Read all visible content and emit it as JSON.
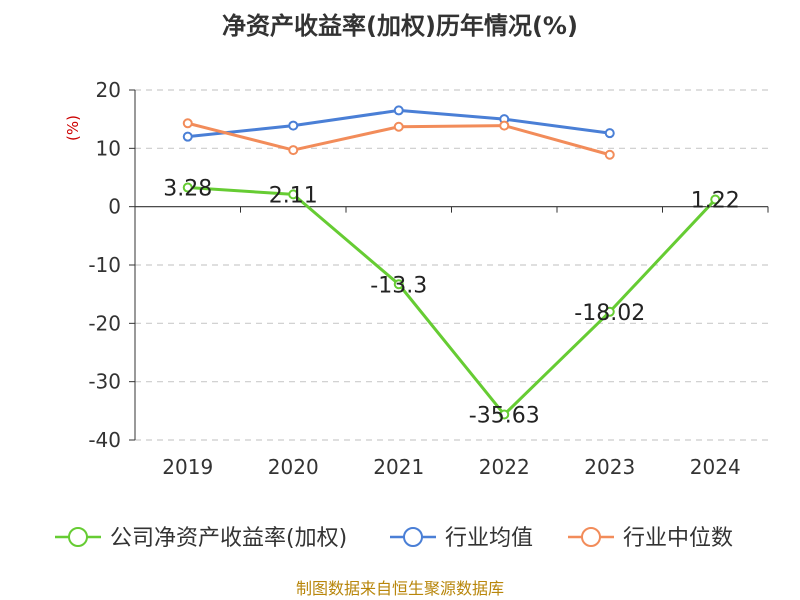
{
  "chart_data": {
    "type": "line",
    "title": "净资产收益率(加权)历年情况(%)",
    "ylabel": "(%)",
    "xlabel": "",
    "categories": [
      "2019",
      "2020",
      "2021",
      "2022",
      "2023",
      "2024"
    ],
    "ylim": [
      -40,
      20
    ],
    "yticks": [
      20,
      10,
      0,
      -10,
      -20,
      -30,
      -40
    ],
    "grid": "horizontal-dashed",
    "legend_position": "bottom",
    "series": [
      {
        "name": "公司净资产收益率(加权)",
        "color": "#66cc33",
        "values": [
          3.28,
          2.11,
          -13.3,
          -35.63,
          -18.02,
          1.22
        ],
        "labels": [
          "3.28",
          "2.11",
          "-13.3",
          "-35.63",
          "-18.02",
          "1.22"
        ]
      },
      {
        "name": "行业均值",
        "color": "#4a7fd6",
        "values": [
          12.0,
          13.9,
          16.5,
          15.0,
          12.6,
          null
        ]
      },
      {
        "name": "行业中位数",
        "color": "#f28c5a",
        "values": [
          14.3,
          9.7,
          13.7,
          13.9,
          8.9,
          null
        ]
      }
    ],
    "source": "制图数据来自恒生聚源数据库"
  }
}
